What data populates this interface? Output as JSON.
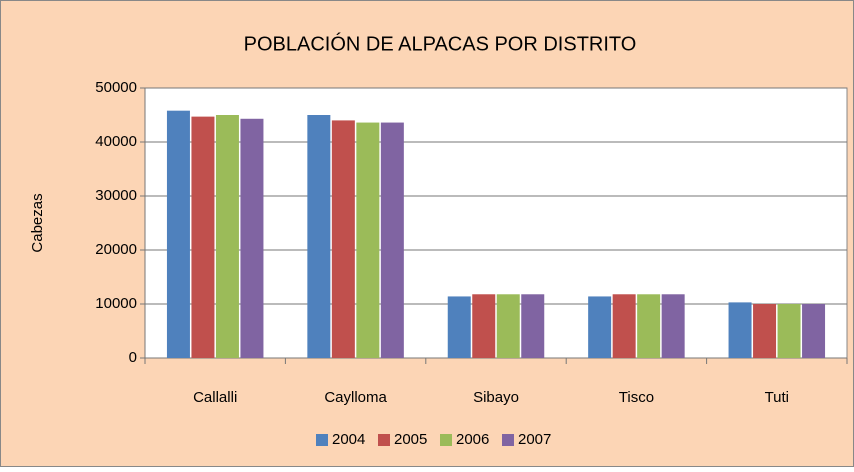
{
  "chart_data": {
    "type": "bar",
    "title": "POBLACIÓN DE ALPACAS POR DISTRITO",
    "y_label": "Cabezas",
    "categories": [
      "Callalli",
      "Caylloma",
      "Sibayo",
      "Tisco",
      "Tuti"
    ],
    "series": [
      {
        "name": "2004",
        "color": "#4f81bd",
        "values": [
          45800,
          45000,
          11400,
          11400,
          10300
        ]
      },
      {
        "name": "2005",
        "color": "#c0504d",
        "values": [
          44700,
          44000,
          11800,
          11800,
          10000
        ]
      },
      {
        "name": "2006",
        "color": "#9bbb59",
        "values": [
          45000,
          43600,
          11800,
          11800,
          10000
        ]
      },
      {
        "name": "2007",
        "color": "#8064a2",
        "values": [
          44300,
          43600,
          11800,
          11800,
          10000
        ]
      }
    ],
    "ylim": [
      0,
      50000
    ],
    "yticks": [
      0,
      10000,
      20000,
      30000,
      40000,
      50000
    ],
    "grid": true,
    "legend": "bottom"
  }
}
